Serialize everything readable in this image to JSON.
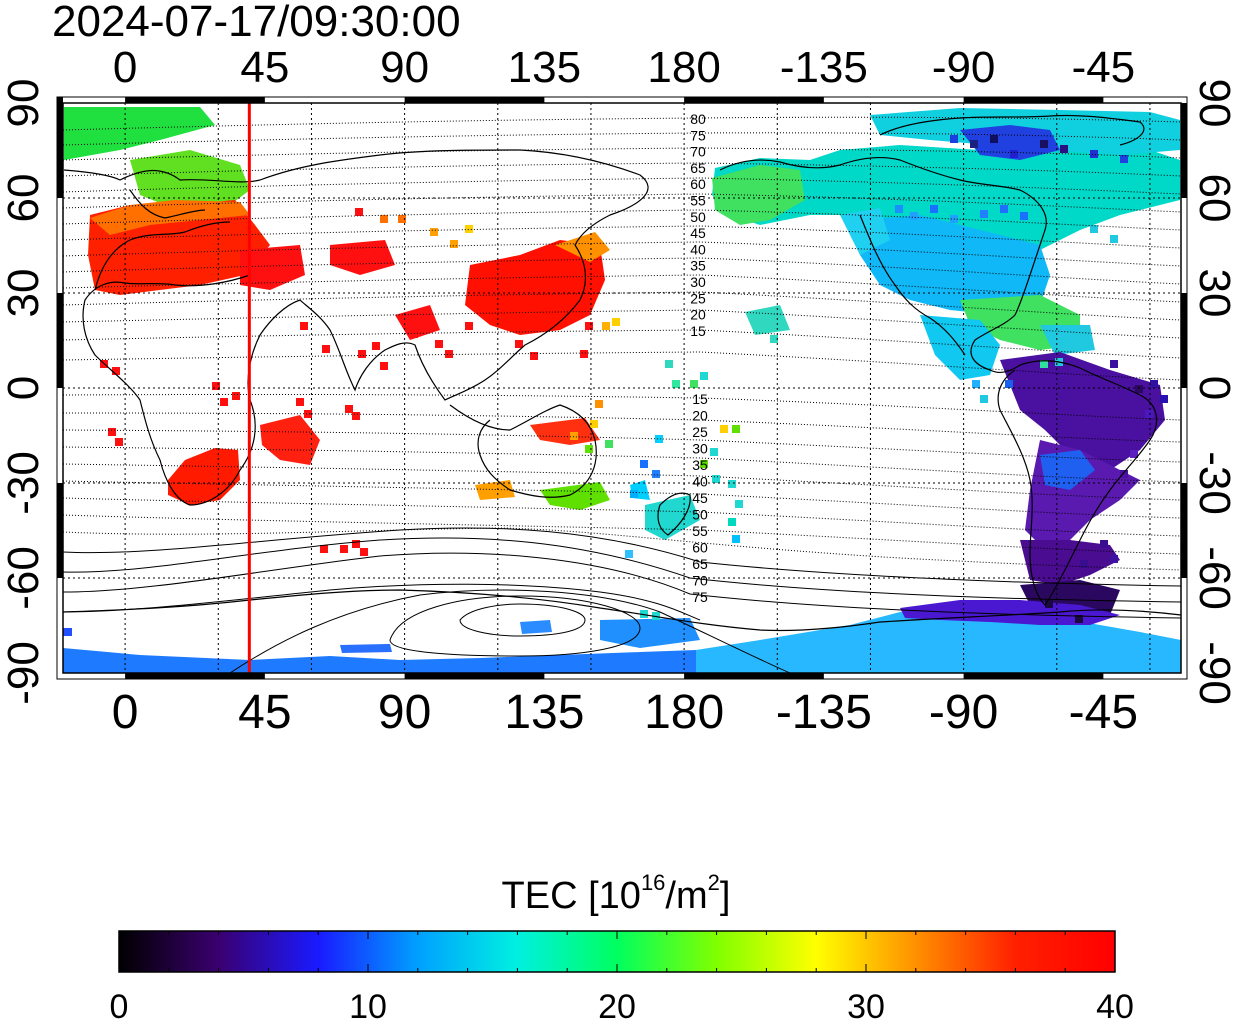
{
  "title": "2024-07-17/09:30:00",
  "top_lon_labels": [
    "0",
    "45",
    "90",
    "135",
    "180",
    "-135",
    "-90",
    "-45"
  ],
  "bottom_lon_labels": [
    "0",
    "45",
    "90",
    "135",
    "180",
    "-135",
    "-90",
    "-45"
  ],
  "left_lat_labels": [
    "90",
    "60",
    "30",
    "0",
    "-30",
    "-60",
    "-90"
  ],
  "right_lat_labels": [
    "90",
    "60",
    "30",
    "0",
    "-30",
    "-60",
    "-90"
  ],
  "contour_labels_north": [
    "80",
    "75",
    "70",
    "65",
    "60",
    "55",
    "50",
    "45",
    "40",
    "35",
    "30",
    "25",
    "20",
    "15"
  ],
  "contour_labels_south": [
    "15",
    "20",
    "25",
    "30",
    "35",
    "40",
    "45",
    "50",
    "55",
    "60",
    "65",
    "70",
    "75"
  ],
  "colorbar": {
    "title_main": "TEC  [10",
    "title_sup1": "16",
    "title_mid": "/m",
    "title_sup2": "2",
    "title_end": "]",
    "min": 0,
    "max": 40,
    "tick_labels": [
      "0",
      "10",
      "20",
      "30",
      "40"
    ],
    "gradient_colors": [
      "#000000",
      "#3a0070",
      "#1a1aff",
      "#00a0ff",
      "#00f0e0",
      "#00ff60",
      "#80ff00",
      "#ffff00",
      "#ff9000",
      "#ff2000",
      "#ff0000"
    ]
  },
  "marker": {
    "longitude": 40,
    "color": "#ff0000"
  },
  "tec_regions": [
    {
      "name": "europe",
      "tec": 38
    },
    {
      "name": "scandinavia",
      "tec": 26
    },
    {
      "name": "east-asia",
      "tec": 39
    },
    {
      "name": "southern-africa",
      "tec": 40
    },
    {
      "name": "north-america",
      "tec": 16
    },
    {
      "name": "south-america",
      "tec": 4
    },
    {
      "name": "antarctica",
      "tec": 12
    },
    {
      "name": "australia",
      "tec": 24
    },
    {
      "name": "new-zealand",
      "tec": 17
    }
  ]
}
